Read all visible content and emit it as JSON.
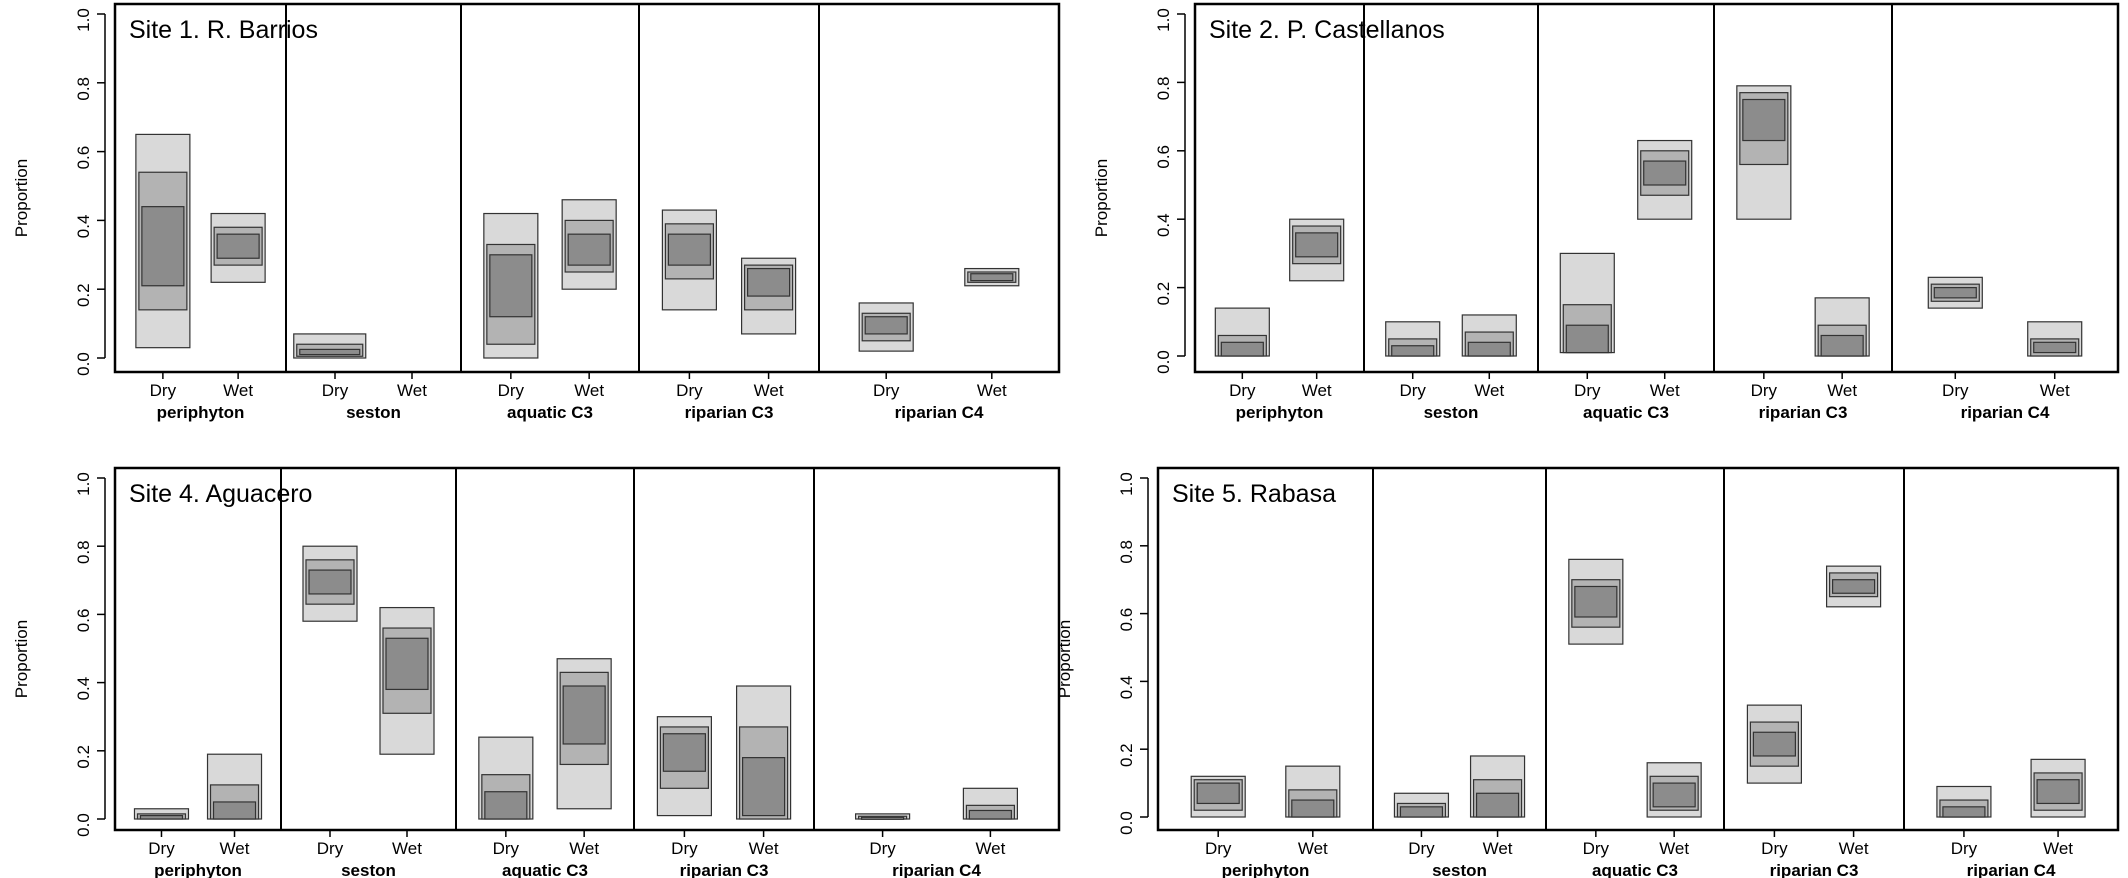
{
  "chart_data": [
    {
      "type": "boxplot",
      "title": "Site 1. R. Barrios",
      "ylabel": "Proportion",
      "ylim": [
        0,
        1
      ],
      "yticks": [
        "0.0",
        "0.2",
        "0.4",
        "0.6",
        "0.8",
        "1.0"
      ],
      "season_labels": [
        "Dry",
        "Wet"
      ],
      "groups": [
        {
          "name": "periphyton",
          "boxes": [
            {
              "season": "Dry",
              "q95": [
                0.03,
                0.65
              ],
              "q75": [
                0.14,
                0.54
              ],
              "q50": [
                0.21,
                0.44
              ]
            },
            {
              "season": "Wet",
              "q95": [
                0.22,
                0.42
              ],
              "q75": [
                0.27,
                0.38
              ],
              "q50": [
                0.29,
                0.36
              ]
            }
          ]
        },
        {
          "name": "seston",
          "boxes": [
            {
              "season": "Dry",
              "q95": [
                0.0,
                0.07
              ],
              "q75": [
                0.005,
                0.04
              ],
              "q50": [
                0.01,
                0.025
              ]
            }
          ]
        },
        {
          "name": "aquatic C3",
          "boxes": [
            {
              "season": "Dry",
              "q95": [
                0.0,
                0.42
              ],
              "q75": [
                0.04,
                0.33
              ],
              "q50": [
                0.12,
                0.3
              ]
            },
            {
              "season": "Wet",
              "q95": [
                0.2,
                0.46
              ],
              "q75": [
                0.25,
                0.4
              ],
              "q50": [
                0.27,
                0.36
              ]
            }
          ]
        },
        {
          "name": "riparian C3",
          "boxes": [
            {
              "season": "Dry",
              "q95": [
                0.14,
                0.43
              ],
              "q75": [
                0.23,
                0.39
              ],
              "q50": [
                0.27,
                0.36
              ]
            },
            {
              "season": "Wet",
              "q95": [
                0.07,
                0.29
              ],
              "q75": [
                0.14,
                0.27
              ],
              "q50": [
                0.18,
                0.26
              ]
            }
          ]
        },
        {
          "name": "riparian C4",
          "boxes": [
            {
              "season": "Dry",
              "q95": [
                0.02,
                0.16
              ],
              "q75": [
                0.05,
                0.13
              ],
              "q50": [
                0.07,
                0.12
              ]
            },
            {
              "season": "Wet",
              "q95": [
                0.21,
                0.26
              ],
              "q75": [
                0.22,
                0.25
              ],
              "q50": [
                0.225,
                0.245
              ]
            }
          ]
        }
      ]
    },
    {
      "type": "boxplot",
      "title": "Site 2. P. Castellanos",
      "ylabel": "Proportion",
      "ylim": [
        0,
        1
      ],
      "yticks": [
        "0.0",
        "0.2",
        "0.4",
        "0.6",
        "0.8",
        "1.0"
      ],
      "season_labels": [
        "Dry",
        "Wet"
      ],
      "groups": [
        {
          "name": "periphyton",
          "boxes": [
            {
              "season": "Dry",
              "q95": [
                0.0,
                0.14
              ],
              "q75": [
                0.0,
                0.06
              ],
              "q50": [
                0.0,
                0.04
              ]
            },
            {
              "season": "Wet",
              "q95": [
                0.22,
                0.4
              ],
              "q75": [
                0.27,
                0.38
              ],
              "q50": [
                0.29,
                0.36
              ]
            }
          ]
        },
        {
          "name": "seston",
          "boxes": [
            {
              "season": "Dry",
              "q95": [
                0.0,
                0.1
              ],
              "q75": [
                0.0,
                0.05
              ],
              "q50": [
                0.0,
                0.03
              ]
            },
            {
              "season": "Wet",
              "q95": [
                0.0,
                0.12
              ],
              "q75": [
                0.0,
                0.07
              ],
              "q50": [
                0.0,
                0.04
              ]
            }
          ]
        },
        {
          "name": "aquatic C3",
          "boxes": [
            {
              "season": "Dry",
              "q95": [
                0.01,
                0.3
              ],
              "q75": [
                0.01,
                0.15
              ],
              "q50": [
                0.01,
                0.09
              ]
            },
            {
              "season": "Wet",
              "q95": [
                0.4,
                0.63
              ],
              "q75": [
                0.47,
                0.6
              ],
              "q50": [
                0.5,
                0.57
              ]
            }
          ]
        },
        {
          "name": "riparian C3",
          "boxes": [
            {
              "season": "Dry",
              "q95": [
                0.4,
                0.79
              ],
              "q75": [
                0.56,
                0.77
              ],
              "q50": [
                0.63,
                0.75
              ]
            },
            {
              "season": "Wet",
              "q95": [
                0.0,
                0.17
              ],
              "q75": [
                0.0,
                0.09
              ],
              "q50": [
                0.0,
                0.06
              ]
            }
          ]
        },
        {
          "name": "riparian C4",
          "boxes": [
            {
              "season": "Dry",
              "q95": [
                0.14,
                0.23
              ],
              "q75": [
                0.16,
                0.21
              ],
              "q50": [
                0.17,
                0.2
              ]
            },
            {
              "season": "Wet",
              "q95": [
                0.0,
                0.1
              ],
              "q75": [
                0.0,
                0.05
              ],
              "q50": [
                0.01,
                0.04
              ]
            }
          ]
        }
      ]
    },
    {
      "type": "boxplot",
      "title": "Site 4. Aguacero",
      "ylabel": "Proportion",
      "ylim": [
        0,
        1
      ],
      "yticks": [
        "0.0",
        "0.2",
        "0.4",
        "0.6",
        "0.8",
        "1.0"
      ],
      "season_labels": [
        "Dry",
        "Wet"
      ],
      "groups": [
        {
          "name": "periphyton",
          "boxes": [
            {
              "season": "Dry",
              "q95": [
                0.0,
                0.03
              ],
              "q75": [
                0.0,
                0.015
              ],
              "q50": [
                0.0,
                0.01
              ]
            },
            {
              "season": "Wet",
              "q95": [
                0.0,
                0.19
              ],
              "q75": [
                0.0,
                0.1
              ],
              "q50": [
                0.0,
                0.05
              ]
            }
          ]
        },
        {
          "name": "seston",
          "boxes": [
            {
              "season": "Dry",
              "q95": [
                0.58,
                0.8
              ],
              "q75": [
                0.63,
                0.76
              ],
              "q50": [
                0.66,
                0.73
              ]
            },
            {
              "season": "Wet",
              "q95": [
                0.19,
                0.62
              ],
              "q75": [
                0.31,
                0.56
              ],
              "q50": [
                0.38,
                0.53
              ]
            }
          ]
        },
        {
          "name": "aquatic C3",
          "boxes": [
            {
              "season": "Dry",
              "q95": [
                0.0,
                0.24
              ],
              "q75": [
                0.0,
                0.13
              ],
              "q50": [
                0.0,
                0.08
              ]
            },
            {
              "season": "Wet",
              "q95": [
                0.03,
                0.47
              ],
              "q75": [
                0.16,
                0.43
              ],
              "q50": [
                0.22,
                0.39
              ]
            }
          ]
        },
        {
          "name": "riparian C3",
          "boxes": [
            {
              "season": "Dry",
              "q95": [
                0.01,
                0.3
              ],
              "q75": [
                0.09,
                0.27
              ],
              "q50": [
                0.14,
                0.25
              ]
            },
            {
              "season": "Wet",
              "q95": [
                0.0,
                0.39
              ],
              "q75": [
                0.0,
                0.27
              ],
              "q50": [
                0.01,
                0.18
              ]
            }
          ]
        },
        {
          "name": "riparian C4",
          "boxes": [
            {
              "season": "Dry",
              "q95": [
                0.0,
                0.015
              ],
              "q75": [
                0.0,
                0.008
              ],
              "q50": [
                0.0,
                0.005
              ]
            },
            {
              "season": "Wet",
              "q95": [
                0.0,
                0.09
              ],
              "q75": [
                0.0,
                0.04
              ],
              "q50": [
                0.0,
                0.025
              ]
            }
          ]
        }
      ]
    },
    {
      "type": "boxplot",
      "title": "Site 5. Rabasa",
      "ylabel": "Proportion",
      "ylim": [
        0,
        1
      ],
      "yticks": [
        "0.0",
        "0.2",
        "0.4",
        "0.6",
        "0.8",
        "1.0"
      ],
      "season_labels": [
        "Dry",
        "Wet"
      ],
      "groups": [
        {
          "name": "periphyton",
          "boxes": [
            {
              "season": "Dry",
              "q95": [
                0.0,
                0.12
              ],
              "q75": [
                0.02,
                0.11
              ],
              "q50": [
                0.04,
                0.1
              ]
            },
            {
              "season": "Wet",
              "q95": [
                0.0,
                0.15
              ],
              "q75": [
                0.0,
                0.08
              ],
              "q50": [
                0.0,
                0.05
              ]
            }
          ]
        },
        {
          "name": "seston",
          "boxes": [
            {
              "season": "Dry",
              "q95": [
                0.0,
                0.07
              ],
              "q75": [
                0.0,
                0.04
              ],
              "q50": [
                0.0,
                0.03
              ]
            },
            {
              "season": "Wet",
              "q95": [
                0.0,
                0.18
              ],
              "q75": [
                0.0,
                0.11
              ],
              "q50": [
                0.0,
                0.07
              ]
            }
          ]
        },
        {
          "name": "aquatic C3",
          "boxes": [
            {
              "season": "Dry",
              "q95": [
                0.51,
                0.76
              ],
              "q75": [
                0.56,
                0.7
              ],
              "q50": [
                0.59,
                0.68
              ]
            },
            {
              "season": "Wet",
              "q95": [
                0.0,
                0.16
              ],
              "q75": [
                0.02,
                0.12
              ],
              "q50": [
                0.03,
                0.1
              ]
            }
          ]
        },
        {
          "name": "riparian C3",
          "boxes": [
            {
              "season": "Dry",
              "q95": [
                0.1,
                0.33
              ],
              "q75": [
                0.15,
                0.28
              ],
              "q50": [
                0.18,
                0.25
              ]
            },
            {
              "season": "Wet",
              "q95": [
                0.62,
                0.74
              ],
              "q75": [
                0.65,
                0.72
              ],
              "q50": [
                0.66,
                0.7
              ]
            }
          ]
        },
        {
          "name": "riparian C4",
          "boxes": [
            {
              "season": "Dry",
              "q95": [
                0.0,
                0.09
              ],
              "q75": [
                0.0,
                0.05
              ],
              "q50": [
                0.0,
                0.03
              ]
            },
            {
              "season": "Wet",
              "q95": [
                0.0,
                0.17
              ],
              "q75": [
                0.02,
                0.13
              ],
              "q50": [
                0.04,
                0.11
              ]
            }
          ]
        }
      ]
    }
  ]
}
